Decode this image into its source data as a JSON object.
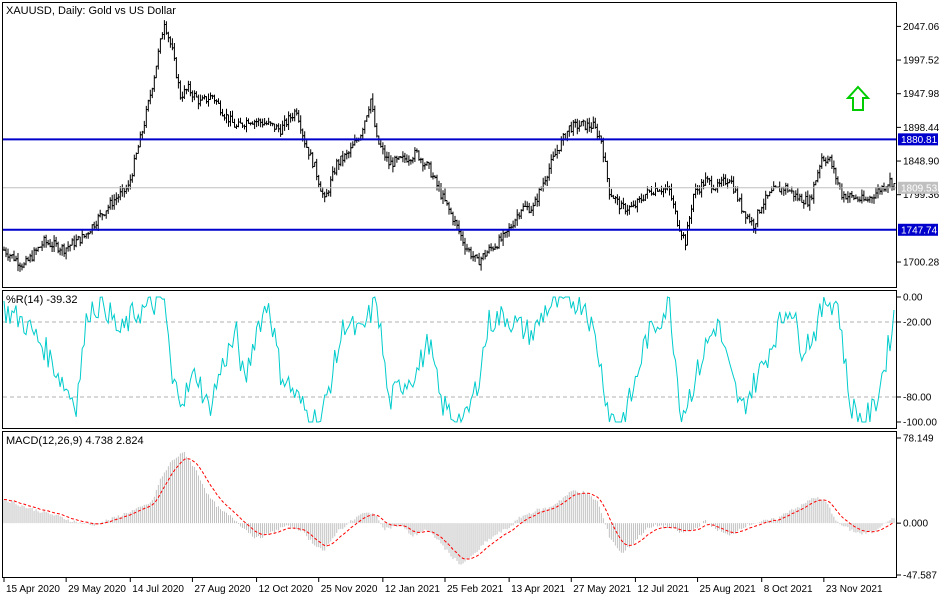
{
  "main": {
    "title": "XAUUSD, Daily:  Gold vs US Dollar",
    "ylim": [
      1665,
      2080
    ],
    "y_ticks": [
      "2047.06",
      "1997.52",
      "1947.98",
      "1898.44",
      "1848.90",
      "1799.36",
      "1700.28"
    ],
    "y_tick_values": [
      2047.06,
      1997.52,
      1947.98,
      1898.44,
      1848.9,
      1799.36,
      1700.28
    ],
    "levels": [
      {
        "label": "1880.81",
        "value": 1880.81,
        "color": "#0000cc"
      },
      {
        "label": "1747.74",
        "value": 1747.74,
        "color": "#0000cc"
      }
    ],
    "current_price": {
      "label": "1809.53",
      "value": 1809.53,
      "color": "#c0c0c0"
    },
    "arrow_color": "#00cc00",
    "arrow_icon": "up-arrow-icon"
  },
  "wr": {
    "title": "%R(14) -39.32",
    "ylim": [
      -104,
      4
    ],
    "y_ticks": [
      "0.00",
      "-20.00",
      "-80.00",
      "-100.00"
    ],
    "y_tick_values": [
      0,
      -20,
      -80,
      -100
    ],
    "levels": [
      -20,
      -80
    ],
    "line_color": "#00cccc"
  },
  "macd": {
    "title": "MACD(12,26,9) 4.738 2.824",
    "ylim": [
      -47.587,
      78.149
    ],
    "y_ticks": [
      "78.149",
      "0.000",
      "-47.587"
    ],
    "y_tick_values": [
      78.149,
      0,
      -47.587
    ],
    "hist_color": "#c0c0c0",
    "signal_color": "#ff0000"
  },
  "x_axis": {
    "labels": [
      "15 Apr 2020",
      "29 May 2020",
      "14 Jul 2020",
      "27 Aug 2020",
      "12 Oct 2020",
      "25 Nov 2020",
      "12 Jan 2021",
      "25 Feb 2021",
      "13 Apr 2021",
      "27 May 2021",
      "12 Jul 2021",
      "25 Aug 2021",
      "8 Oct 2021",
      "23 Nov 2021"
    ],
    "label_index": [
      0,
      31,
      63,
      94,
      126,
      157,
      189,
      220,
      252,
      283,
      315,
      346,
      378,
      409
    ]
  },
  "chart_data": {
    "type": "line",
    "title": "XAUUSD, Daily:  Gold vs US Dollar",
    "x_start": "15 Apr 2020",
    "x_end": "23 Nov 2021",
    "bar_count": 445,
    "series": [
      {
        "name": "XAUUSD",
        "anchors": [
          [
            0,
            1718
          ],
          [
            10,
            1695
          ],
          [
            20,
            1730
          ],
          [
            30,
            1720
          ],
          [
            40,
            1738
          ],
          [
            47,
            1765
          ],
          [
            55,
            1792
          ],
          [
            62,
            1810
          ],
          [
            70,
            1905
          ],
          [
            75,
            1975
          ],
          [
            80,
            2055
          ],
          [
            84,
            2010
          ],
          [
            88,
            1945
          ],
          [
            92,
            1955
          ],
          [
            98,
            1935
          ],
          [
            104,
            1945
          ],
          [
            110,
            1918
          ],
          [
            116,
            1898
          ],
          [
            122,
            1910
          ],
          [
            130,
            1905
          ],
          [
            138,
            1895
          ],
          [
            146,
            1925
          ],
          [
            150,
            1878
          ],
          [
            155,
            1840
          ],
          [
            160,
            1790
          ],
          [
            166,
            1845
          ],
          [
            172,
            1860
          ],
          [
            178,
            1890
          ],
          [
            183,
            1940
          ],
          [
            186,
            1880
          ],
          [
            192,
            1845
          ],
          [
            198,
            1850
          ],
          [
            206,
            1860
          ],
          [
            212,
            1838
          ],
          [
            218,
            1800
          ],
          [
            224,
            1765
          ],
          [
            230,
            1725
          ],
          [
            236,
            1700
          ],
          [
            242,
            1718
          ],
          [
            250,
            1738
          ],
          [
            258,
            1780
          ],
          [
            264,
            1780
          ],
          [
            270,
            1825
          ],
          [
            276,
            1865
          ],
          [
            282,
            1898
          ],
          [
            288,
            1902
          ],
          [
            294,
            1900
          ],
          [
            298,
            1880
          ],
          [
            302,
            1805
          ],
          [
            308,
            1780
          ],
          [
            314,
            1780
          ],
          [
            320,
            1800
          ],
          [
            326,
            1810
          ],
          [
            332,
            1805
          ],
          [
            336,
            1760
          ],
          [
            340,
            1730
          ],
          [
            344,
            1800
          ],
          [
            350,
            1820
          ],
          [
            356,
            1810
          ],
          [
            362,
            1825
          ],
          [
            368,
            1780
          ],
          [
            374,
            1755
          ],
          [
            378,
            1785
          ],
          [
            384,
            1805
          ],
          [
            390,
            1810
          ],
          [
            396,
            1795
          ],
          [
            402,
            1790
          ],
          [
            408,
            1855
          ],
          [
            412,
            1850
          ],
          [
            418,
            1800
          ],
          [
            424,
            1795
          ],
          [
            430,
            1790
          ],
          [
            436,
            1805
          ],
          [
            442,
            1820
          ],
          [
            445,
            1812
          ]
        ],
        "levels": [
          1880.81,
          1747.74
        ],
        "current": 1809.53
      },
      {
        "name": "%R(14)",
        "anchors": [
          [
            0,
            -10
          ],
          [
            10,
            -20
          ],
          [
            20,
            -40
          ],
          [
            30,
            -70
          ],
          [
            36,
            -85
          ],
          [
            42,
            -10
          ],
          [
            50,
            -5
          ],
          [
            58,
            -30
          ],
          [
            64,
            -15
          ],
          [
            70,
            -10
          ],
          [
            76,
            -5
          ],
          [
            80,
            -2
          ],
          [
            84,
            -70
          ],
          [
            90,
            -80
          ],
          [
            96,
            -60
          ],
          [
            102,
            -90
          ],
          [
            110,
            -50
          ],
          [
            116,
            -30
          ],
          [
            120,
            -70
          ],
          [
            126,
            -25
          ],
          [
            132,
            -4
          ],
          [
            138,
            -60
          ],
          [
            146,
            -80
          ],
          [
            152,
            -95
          ],
          [
            158,
            -100
          ],
          [
            164,
            -60
          ],
          [
            170,
            -20
          ],
          [
            178,
            -30
          ],
          [
            186,
            -2
          ],
          [
            192,
            -85
          ],
          [
            198,
            -70
          ],
          [
            206,
            -60
          ],
          [
            212,
            -35
          ],
          [
            218,
            -85
          ],
          [
            224,
            -95
          ],
          [
            230,
            -100
          ],
          [
            236,
            -70
          ],
          [
            242,
            -20
          ],
          [
            250,
            -15
          ],
          [
            258,
            -25
          ],
          [
            264,
            -30
          ],
          [
            270,
            -10
          ],
          [
            276,
            -5
          ],
          [
            282,
            -2
          ],
          [
            290,
            -5
          ],
          [
            296,
            -40
          ],
          [
            302,
            -95
          ],
          [
            308,
            -100
          ],
          [
            314,
            -75
          ],
          [
            320,
            -35
          ],
          [
            326,
            -20
          ],
          [
            332,
            -5
          ],
          [
            338,
            -95
          ],
          [
            344,
            -70
          ],
          [
            350,
            -40
          ],
          [
            356,
            -20
          ],
          [
            362,
            -60
          ],
          [
            368,
            -90
          ],
          [
            374,
            -70
          ],
          [
            380,
            -50
          ],
          [
            386,
            -25
          ],
          [
            392,
            -5
          ],
          [
            398,
            -40
          ],
          [
            404,
            -30
          ],
          [
            410,
            -2
          ],
          [
            416,
            -5
          ],
          [
            422,
            -85
          ],
          [
            428,
            -100
          ],
          [
            434,
            -90
          ],
          [
            440,
            -50
          ],
          [
            444,
            -15
          ],
          [
            445,
            -39
          ]
        ],
        "levels": [
          -20,
          -80
        ],
        "current": -39.32
      },
      {
        "name": "MACD",
        "anchors": [
          [
            0,
            22
          ],
          [
            12,
            14
          ],
          [
            24,
            8
          ],
          [
            34,
            2
          ],
          [
            44,
            -2
          ],
          [
            54,
            4
          ],
          [
            62,
            10
          ],
          [
            68,
            14
          ],
          [
            74,
            20
          ],
          [
            78,
            40
          ],
          [
            84,
            58
          ],
          [
            90,
            65
          ],
          [
            96,
            48
          ],
          [
            102,
            25
          ],
          [
            108,
            12
          ],
          [
            114,
            5
          ],
          [
            120,
            -5
          ],
          [
            126,
            -14
          ],
          [
            132,
            -10
          ],
          [
            140,
            -3
          ],
          [
            148,
            -6
          ],
          [
            154,
            -18
          ],
          [
            160,
            -26
          ],
          [
            166,
            -8
          ],
          [
            172,
            0
          ],
          [
            178,
            8
          ],
          [
            184,
            10
          ],
          [
            190,
            -5
          ],
          [
            198,
            -2
          ],
          [
            204,
            -12
          ],
          [
            210,
            -6
          ],
          [
            216,
            -14
          ],
          [
            222,
            -28
          ],
          [
            228,
            -38
          ],
          [
            234,
            -30
          ],
          [
            240,
            -18
          ],
          [
            246,
            -10
          ],
          [
            252,
            -4
          ],
          [
            258,
            6
          ],
          [
            266,
            12
          ],
          [
            272,
            14
          ],
          [
            278,
            22
          ],
          [
            284,
            30
          ],
          [
            290,
            28
          ],
          [
            296,
            20
          ],
          [
            302,
            -12
          ],
          [
            308,
            -28
          ],
          [
            314,
            -18
          ],
          [
            320,
            -6
          ],
          [
            326,
            -2
          ],
          [
            332,
            -4
          ],
          [
            338,
            -9
          ],
          [
            344,
            -6
          ],
          [
            350,
            2
          ],
          [
            356,
            -6
          ],
          [
            362,
            -12
          ],
          [
            368,
            -4
          ],
          [
            374,
            0
          ],
          [
            380,
            2
          ],
          [
            386,
            4
          ],
          [
            392,
            12
          ],
          [
            398,
            16
          ],
          [
            404,
            24
          ],
          [
            410,
            20
          ],
          [
            416,
            0
          ],
          [
            422,
            -6
          ],
          [
            428,
            -10
          ],
          [
            434,
            -8
          ],
          [
            440,
            2
          ],
          [
            445,
            4.738
          ]
        ],
        "signal_current": 2.824,
        "current": 4.738
      }
    ]
  }
}
